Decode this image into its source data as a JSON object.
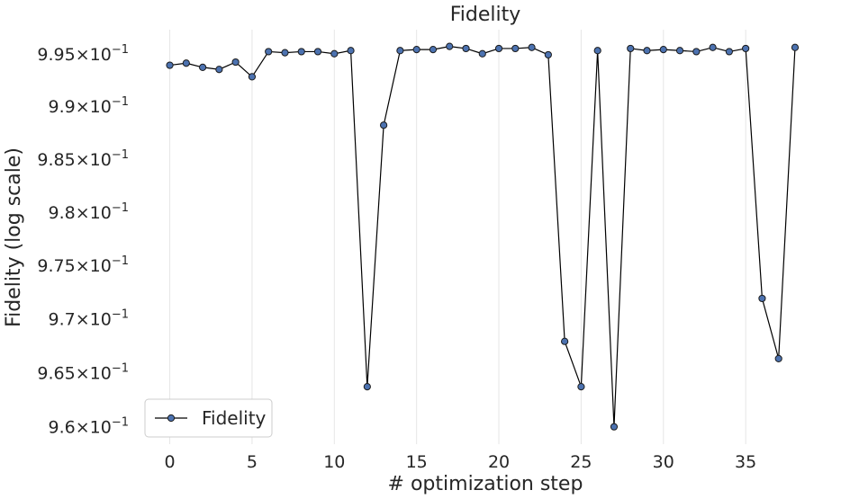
{
  "chart_data": {
    "type": "line",
    "title": "Fidelity",
    "xlabel": "# optimization step",
    "ylabel": "Fidelity (log scale)",
    "yscale": "log",
    "grid": "vertical",
    "legend": "lower-left",
    "xlim": [
      -2,
      40.3
    ],
    "ylim": [
      0.9584,
      0.9973
    ],
    "x_ticks": [
      0,
      5,
      10,
      15,
      20,
      25,
      30,
      35
    ],
    "y_ticks": [
      {
        "value": 0.96,
        "mantissa": "9.6",
        "base": "10",
        "exp": "−1"
      },
      {
        "value": 0.965,
        "mantissa": "9.65",
        "base": "10",
        "exp": "−1"
      },
      {
        "value": 0.97,
        "mantissa": "9.7",
        "base": "10",
        "exp": "−1"
      },
      {
        "value": 0.975,
        "mantissa": "9.75",
        "base": "10",
        "exp": "−1"
      },
      {
        "value": 0.98,
        "mantissa": "9.8",
        "base": "10",
        "exp": "−1"
      },
      {
        "value": 0.985,
        "mantissa": "9.85",
        "base": "10",
        "exp": "−1"
      },
      {
        "value": 0.99,
        "mantissa": "9.9",
        "base": "10",
        "exp": "−1"
      },
      {
        "value": 0.995,
        "mantissa": "9.95",
        "base": "10",
        "exp": "−1"
      }
    ],
    "series": [
      {
        "name": "Fidelity",
        "line_color": "#000000",
        "marker_color": "#4c72b0",
        "x": [
          0,
          1,
          2,
          3,
          4,
          5,
          6,
          7,
          8,
          9,
          10,
          11,
          12,
          13,
          14,
          15,
          16,
          17,
          18,
          19,
          20,
          21,
          22,
          23,
          24,
          25,
          26,
          27,
          28,
          29,
          30,
          31,
          32,
          33,
          34,
          35,
          36,
          37,
          38
        ],
        "y": [
          0.9939,
          0.9941,
          0.9937,
          0.9935,
          0.9942,
          0.9928,
          0.9952,
          0.9951,
          0.9952,
          0.9952,
          0.995,
          0.9953,
          0.9637,
          0.9882,
          0.9953,
          0.9954,
          0.9954,
          0.9957,
          0.9955,
          0.995,
          0.9955,
          0.9955,
          0.9956,
          0.9949,
          0.9679,
          0.9637,
          0.9953,
          0.96,
          0.9955,
          0.9953,
          0.9954,
          0.9953,
          0.9952,
          0.9956,
          0.9952,
          0.9955,
          0.9719,
          0.9663,
          0.9956
        ]
      }
    ]
  }
}
